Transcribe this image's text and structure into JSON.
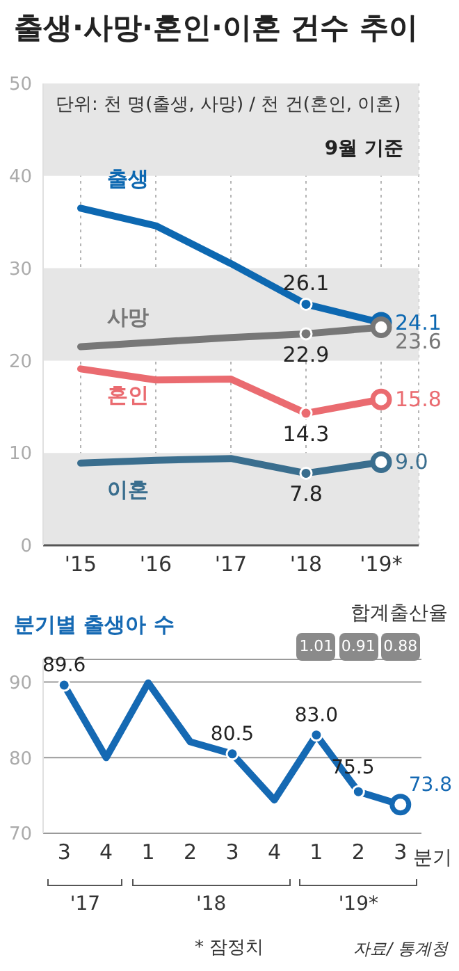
{
  "chart_data": [
    {
      "type": "line",
      "title": "출생·사망·혼인·이혼 건수 추이",
      "categories": [
        "'15",
        "'16",
        "'17",
        "'18",
        "'19*"
      ],
      "ylim": [
        0,
        50
      ],
      "yticks": [
        0,
        10,
        20,
        30,
        40,
        50
      ],
      "grid": "x",
      "annotations": [
        "단위: 천 명(출생, 사망) / 천 건(혼인, 이혼)",
        "9월 기준"
      ],
      "bands": [
        {
          "axis": "y",
          "from": 40,
          "to": 50,
          "color": "#e6e6e6"
        },
        {
          "axis": "y",
          "from": 20,
          "to": 30,
          "color": "#e6e6e6"
        },
        {
          "axis": "y",
          "from": 0,
          "to": 10,
          "color": "#e6e6e6"
        }
      ],
      "series": [
        {
          "name": "출생",
          "color": "#0d68b1",
          "values": [
            36.5,
            34.6,
            30.5,
            26.1,
            24.1
          ],
          "value_labels": [
            null,
            null,
            null,
            "26.1",
            "24.1"
          ]
        },
        {
          "name": "사망",
          "color": "#777777",
          "values": [
            21.5,
            22.0,
            22.5,
            22.9,
            23.6
          ],
          "value_labels": [
            null,
            null,
            null,
            "22.9",
            "23.6"
          ]
        },
        {
          "name": "혼인",
          "color": "#ea6b70",
          "values": [
            19.1,
            17.9,
            18.0,
            14.3,
            15.8
          ],
          "value_labels": [
            null,
            null,
            null,
            "14.3",
            "15.8"
          ]
        },
        {
          "name": "이혼",
          "color": "#3a6e8e",
          "values": [
            8.9,
            9.2,
            9.4,
            7.8,
            9.0
          ],
          "value_labels": [
            null,
            null,
            null,
            "7.8",
            "9.0"
          ]
        }
      ]
    },
    {
      "type": "line",
      "title": "분기별 출생아 수",
      "categories": [
        "3",
        "4",
        "1",
        "2",
        "3",
        "4",
        "1",
        "2",
        "3"
      ],
      "xlabel": "분기",
      "ylim": [
        70,
        93
      ],
      "yticks": [
        70,
        80,
        90
      ],
      "grid": "y",
      "marker": "circle",
      "annotations": [
        "합계출산율",
        "1.01",
        "0.91",
        "0.88",
        "'17",
        "'18",
        "'19*",
        "* 잠정치",
        "자료/ 통계청"
      ],
      "series": [
        {
          "color": "#1569b3",
          "values": [
            89.6,
            80.0,
            89.9,
            82.1,
            80.5,
            74.4,
            83.0,
            75.5,
            73.8
          ],
          "value_labels": [
            "89.6",
            null,
            null,
            null,
            "80.5",
            null,
            "83.0",
            "75.5",
            "73.8"
          ]
        }
      ]
    }
  ]
}
